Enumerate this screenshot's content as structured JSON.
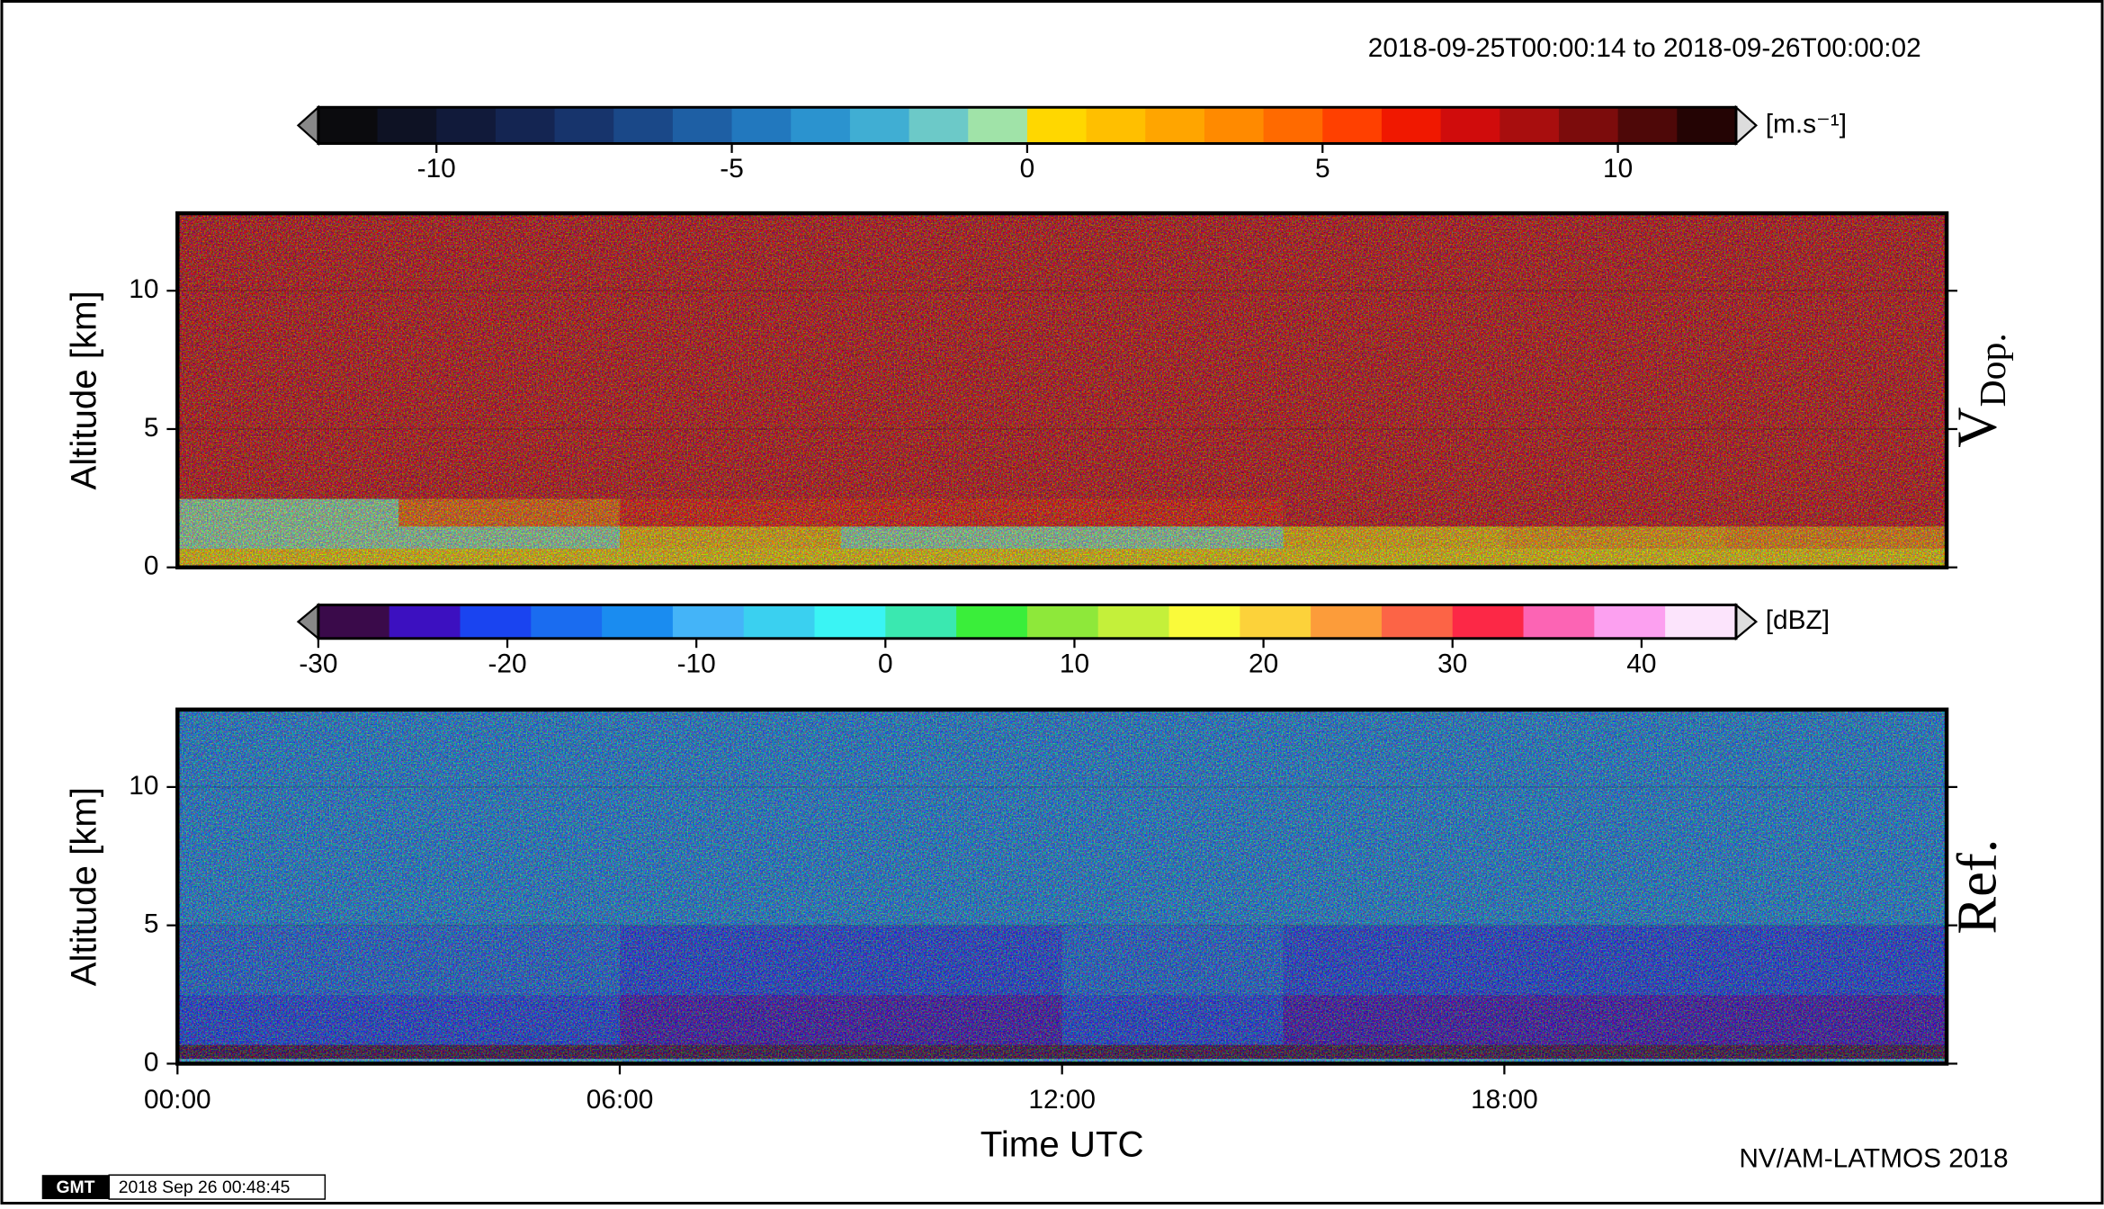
{
  "chart_data": [
    {
      "type": "heatmap",
      "title": "2018-09-25T00:00:14 to 2018-09-26T00:00:02",
      "ylabel": "Altitude [km]",
      "panel_label": "V",
      "panel_label_sub": "Dop.",
      "xlim": [
        0,
        24
      ],
      "ylim": [
        0,
        12.8
      ],
      "yticks": [
        0,
        5,
        10
      ],
      "grid": true,
      "x_edges": [
        0,
        3,
        6,
        9,
        12,
        15,
        18,
        21,
        24
      ],
      "y_edges": [
        0,
        0.7,
        1.5,
        2.5,
        5,
        12.8
      ],
      "z": [
        [
          0.5,
          0.5,
          0.5,
          0.5,
          0.5,
          0.5,
          0.5,
          0.5
        ],
        [
          -1,
          -1,
          1,
          -1,
          -1,
          1,
          2,
          3
        ],
        [
          -1,
          4,
          6,
          6,
          6,
          7,
          7,
          7
        ],
        [
          7,
          7,
          7,
          7,
          7,
          7,
          7,
          7
        ],
        [
          7,
          7,
          7,
          7,
          7,
          7,
          7,
          7
        ]
      ],
      "colorbar": {
        "label": "[m.s⁻¹]",
        "lim": [
          -12,
          12
        ],
        "ticks": [
          -10,
          -5,
          0,
          5,
          10
        ],
        "colors": [
          "#0b0b0e",
          "#0e1224",
          "#111a3a",
          "#142552",
          "#17346c",
          "#1a4888",
          "#1e5fa4",
          "#2278be",
          "#2b93cf",
          "#40aed3",
          "#6cc9c8",
          "#a0e3a8",
          "#ffd700",
          "#ffbf00",
          "#ffa500",
          "#ff8a00",
          "#ff6a00",
          "#ff4000",
          "#f01800",
          "#d00c0c",
          "#a80e0e",
          "#7c0c0c",
          "#4e0808",
          "#240404"
        ]
      }
    },
    {
      "type": "heatmap",
      "ylabel": "Altitude [km]",
      "xlabel": "Time UTC",
      "panel_label": "Ref.",
      "xlim": [
        0,
        24
      ],
      "ylim": [
        0,
        12.8
      ],
      "yticks": [
        0,
        5,
        10
      ],
      "xticks": [
        {
          "value": 0,
          "label": "00:00"
        },
        {
          "value": 6,
          "label": "06:00"
        },
        {
          "value": 12,
          "label": "12:00"
        },
        {
          "value": 18,
          "label": "18:00"
        }
      ],
      "grid": true,
      "x_edges": [
        0,
        3,
        6,
        9,
        12,
        15,
        18,
        21,
        24
      ],
      "y_edges": [
        0,
        0.2,
        0.7,
        2.5,
        5,
        12.8
      ],
      "z": [
        [
          -8,
          -8,
          -8,
          -8,
          -8,
          -8,
          -8,
          -8
        ],
        [
          -28,
          -28,
          -28,
          -28,
          -28,
          -28,
          -28,
          -28
        ],
        [
          -22,
          -22,
          -24,
          -23,
          -22,
          -23,
          -24,
          -24
        ],
        [
          -18,
          -18,
          -19,
          -19,
          -18,
          -19,
          -19,
          -19
        ],
        [
          -13,
          -13,
          -13,
          -13,
          -13,
          -13,
          -13,
          -13
        ]
      ],
      "colorbar": {
        "label": "[dBZ]",
        "lim": [
          -30,
          45
        ],
        "ticks": [
          -30,
          -20,
          -10,
          0,
          10,
          20,
          30,
          40
        ],
        "colors": [
          "#3a0a4a",
          "#3c10c0",
          "#1a44f0",
          "#1a6cf0",
          "#1a8cf0",
          "#44b4f8",
          "#3ad0f0",
          "#3af4f4",
          "#3ae8b0",
          "#3aee3a",
          "#8ee83a",
          "#c4f03a",
          "#fafa3a",
          "#fcd23a",
          "#fc9c3a",
          "#fc6446",
          "#fc2846",
          "#fc64b4",
          "#fca0f0",
          "#fce4fc"
        ]
      }
    }
  ],
  "credit": "NV/AM-LATMOS 2018",
  "gmt_logo": "GMT",
  "gmt_timestamp": "2018 Sep 26 00:48:45"
}
